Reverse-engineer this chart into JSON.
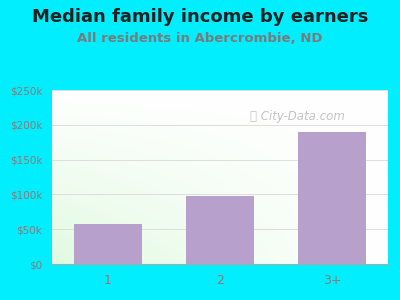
{
  "title": "Median family income by earners",
  "subtitle": "All residents in Abercrombie, ND",
  "categories": [
    "1",
    "2",
    "3+"
  ],
  "values": [
    57000,
    97000,
    190000
  ],
  "bar_color": "#b8a0cc",
  "background_outer": "#00eeff",
  "title_color": "#222222",
  "subtitle_color": "#7a7a7a",
  "tick_color": "#8a7a7a",
  "ylim": [
    0,
    250000
  ],
  "yticks": [
    0,
    50000,
    100000,
    150000,
    200000,
    250000
  ],
  "ytick_labels": [
    "$0",
    "$50k",
    "$100k",
    "$150k",
    "$200k",
    "$250k"
  ],
  "watermark": "City-Data.com",
  "title_fontsize": 13,
  "subtitle_fontsize": 9.5,
  "grid_color": "#dddddd"
}
